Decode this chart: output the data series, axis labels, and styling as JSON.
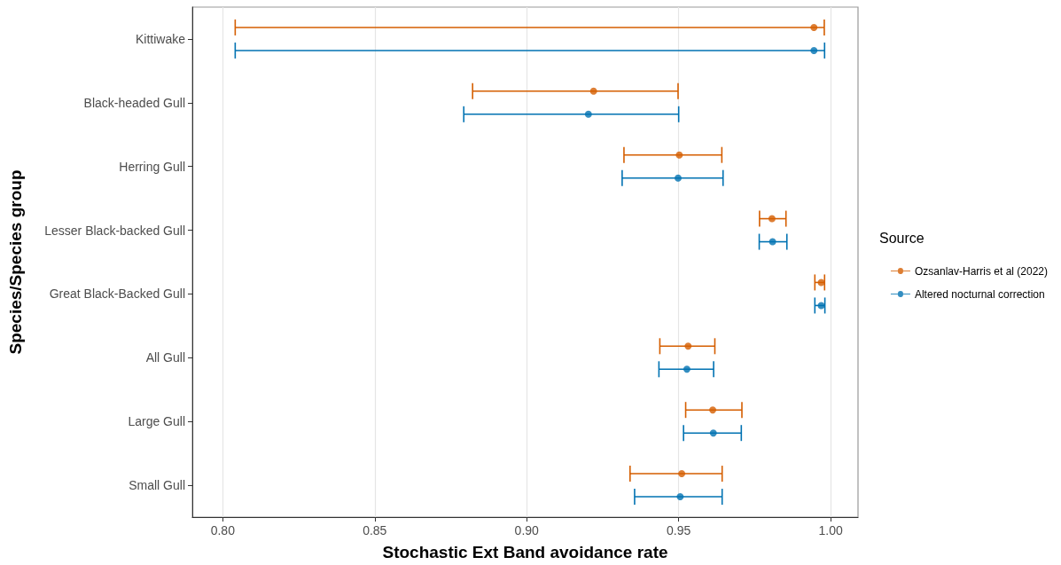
{
  "chart_data": {
    "type": "scatter",
    "orientation": "horizontal",
    "xlabel": "Stochastic Ext Band avoidance rate",
    "ylabel": "Species/Species group",
    "legend_title": "Source",
    "legend": "right",
    "grid": "x",
    "marker": "circle",
    "categories": [
      "Kittiwake",
      "Black-headed Gull",
      "Herring Gull",
      "Lesser Black-backed Gull",
      "Great Black-Backed Gull",
      "All Gull",
      "Large Gull",
      "Small Gull"
    ],
    "xlim": [
      0.79,
      1.009
    ],
    "xticks": [
      {
        "value": 0.8,
        "label": "0.80"
      },
      {
        "value": 0.85,
        "label": "0.85"
      },
      {
        "value": 0.9,
        "label": "0.90"
      },
      {
        "value": 0.95,
        "label": "0.95"
      },
      {
        "value": 1.0,
        "label": "1.00"
      }
    ],
    "series": [
      {
        "name": "Ozsanlav-Harris et al (2022)",
        "color": "#d55e00",
        "values": [
          0.9945,
          0.922,
          0.9502,
          0.9807,
          0.9969,
          0.9531,
          0.9612,
          0.951
        ],
        "errors": [
          [
            0.8041,
            0.9979
          ],
          [
            0.8822,
            0.9498
          ],
          [
            0.932,
            0.9642
          ],
          [
            0.9766,
            0.9853
          ],
          [
            0.9948,
            0.998
          ],
          [
            0.9438,
            0.9619
          ],
          [
            0.9523,
            0.9708
          ],
          [
            0.934,
            0.9643
          ]
        ]
      },
      {
        "name": "Altered nocturnal correction",
        "color": "#0072b2",
        "values": [
          0.9945,
          0.9203,
          0.9498,
          0.9809,
          0.9969,
          0.9527,
          0.9614,
          0.9505
        ],
        "errors": [
          [
            0.8041,
            0.998
          ],
          [
            0.8793,
            0.95
          ],
          [
            0.9314,
            0.9646
          ],
          [
            0.9765,
            0.9856
          ],
          [
            0.9948,
            0.9981
          ],
          [
            0.9435,
            0.9615
          ],
          [
            0.9516,
            0.9706
          ],
          [
            0.9355,
            0.9643
          ]
        ]
      }
    ]
  }
}
